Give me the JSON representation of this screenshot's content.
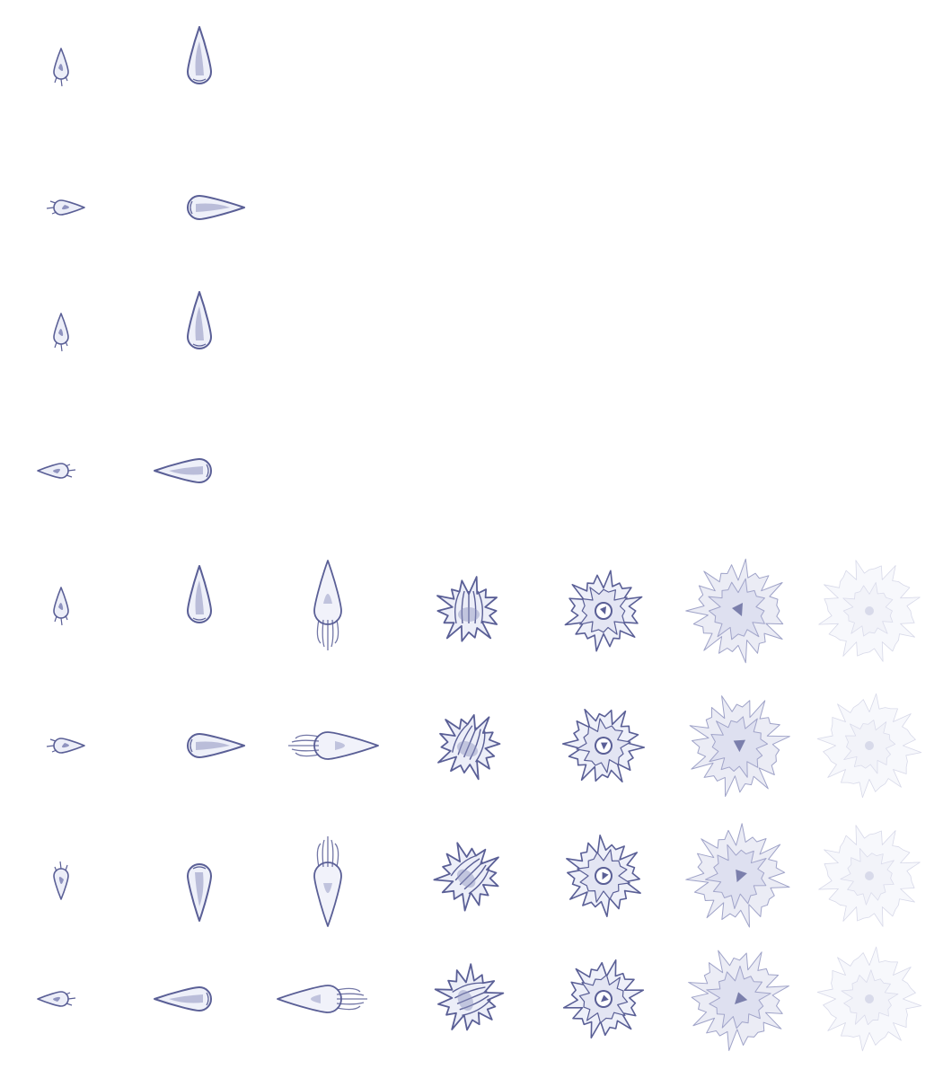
{
  "sheet": {
    "subject": "sprite-sheet",
    "ink_color": "#5a5f96",
    "ink_light": "#8f93bf",
    "ink_faint": "#c7c9e0",
    "background": "#ffffff"
  },
  "rows": [
    {
      "direction": "up",
      "frames": [
        "small-flame",
        "flame-drop"
      ]
    },
    {
      "direction": "right",
      "frames": [
        "small-flame",
        "flame-drop"
      ]
    },
    {
      "direction": "up",
      "frames": [
        "small-flame",
        "flame-drop"
      ]
    },
    {
      "direction": "left",
      "frames": [
        "small-flame",
        "flame-drop"
      ]
    },
    {
      "direction": "up",
      "frames": [
        "small-flame",
        "flame-drop",
        "flame-streak",
        "impact-burst",
        "explosion-ring",
        "smoke-puff",
        "faint-smoke"
      ]
    },
    {
      "direction": "right",
      "frames": [
        "small-flame",
        "flame-drop",
        "flame-streak",
        "impact-burst",
        "explosion-ring",
        "smoke-puff",
        "faint-smoke"
      ]
    },
    {
      "direction": "down",
      "frames": [
        "small-flame",
        "flame-drop",
        "flame-streak",
        "impact-burst",
        "explosion-ring",
        "smoke-puff",
        "faint-smoke"
      ]
    },
    {
      "direction": "left",
      "frames": [
        "small-flame",
        "flame-drop",
        "flame-streak",
        "impact-burst",
        "explosion-ring",
        "smoke-puff",
        "faint-smoke"
      ]
    }
  ]
}
